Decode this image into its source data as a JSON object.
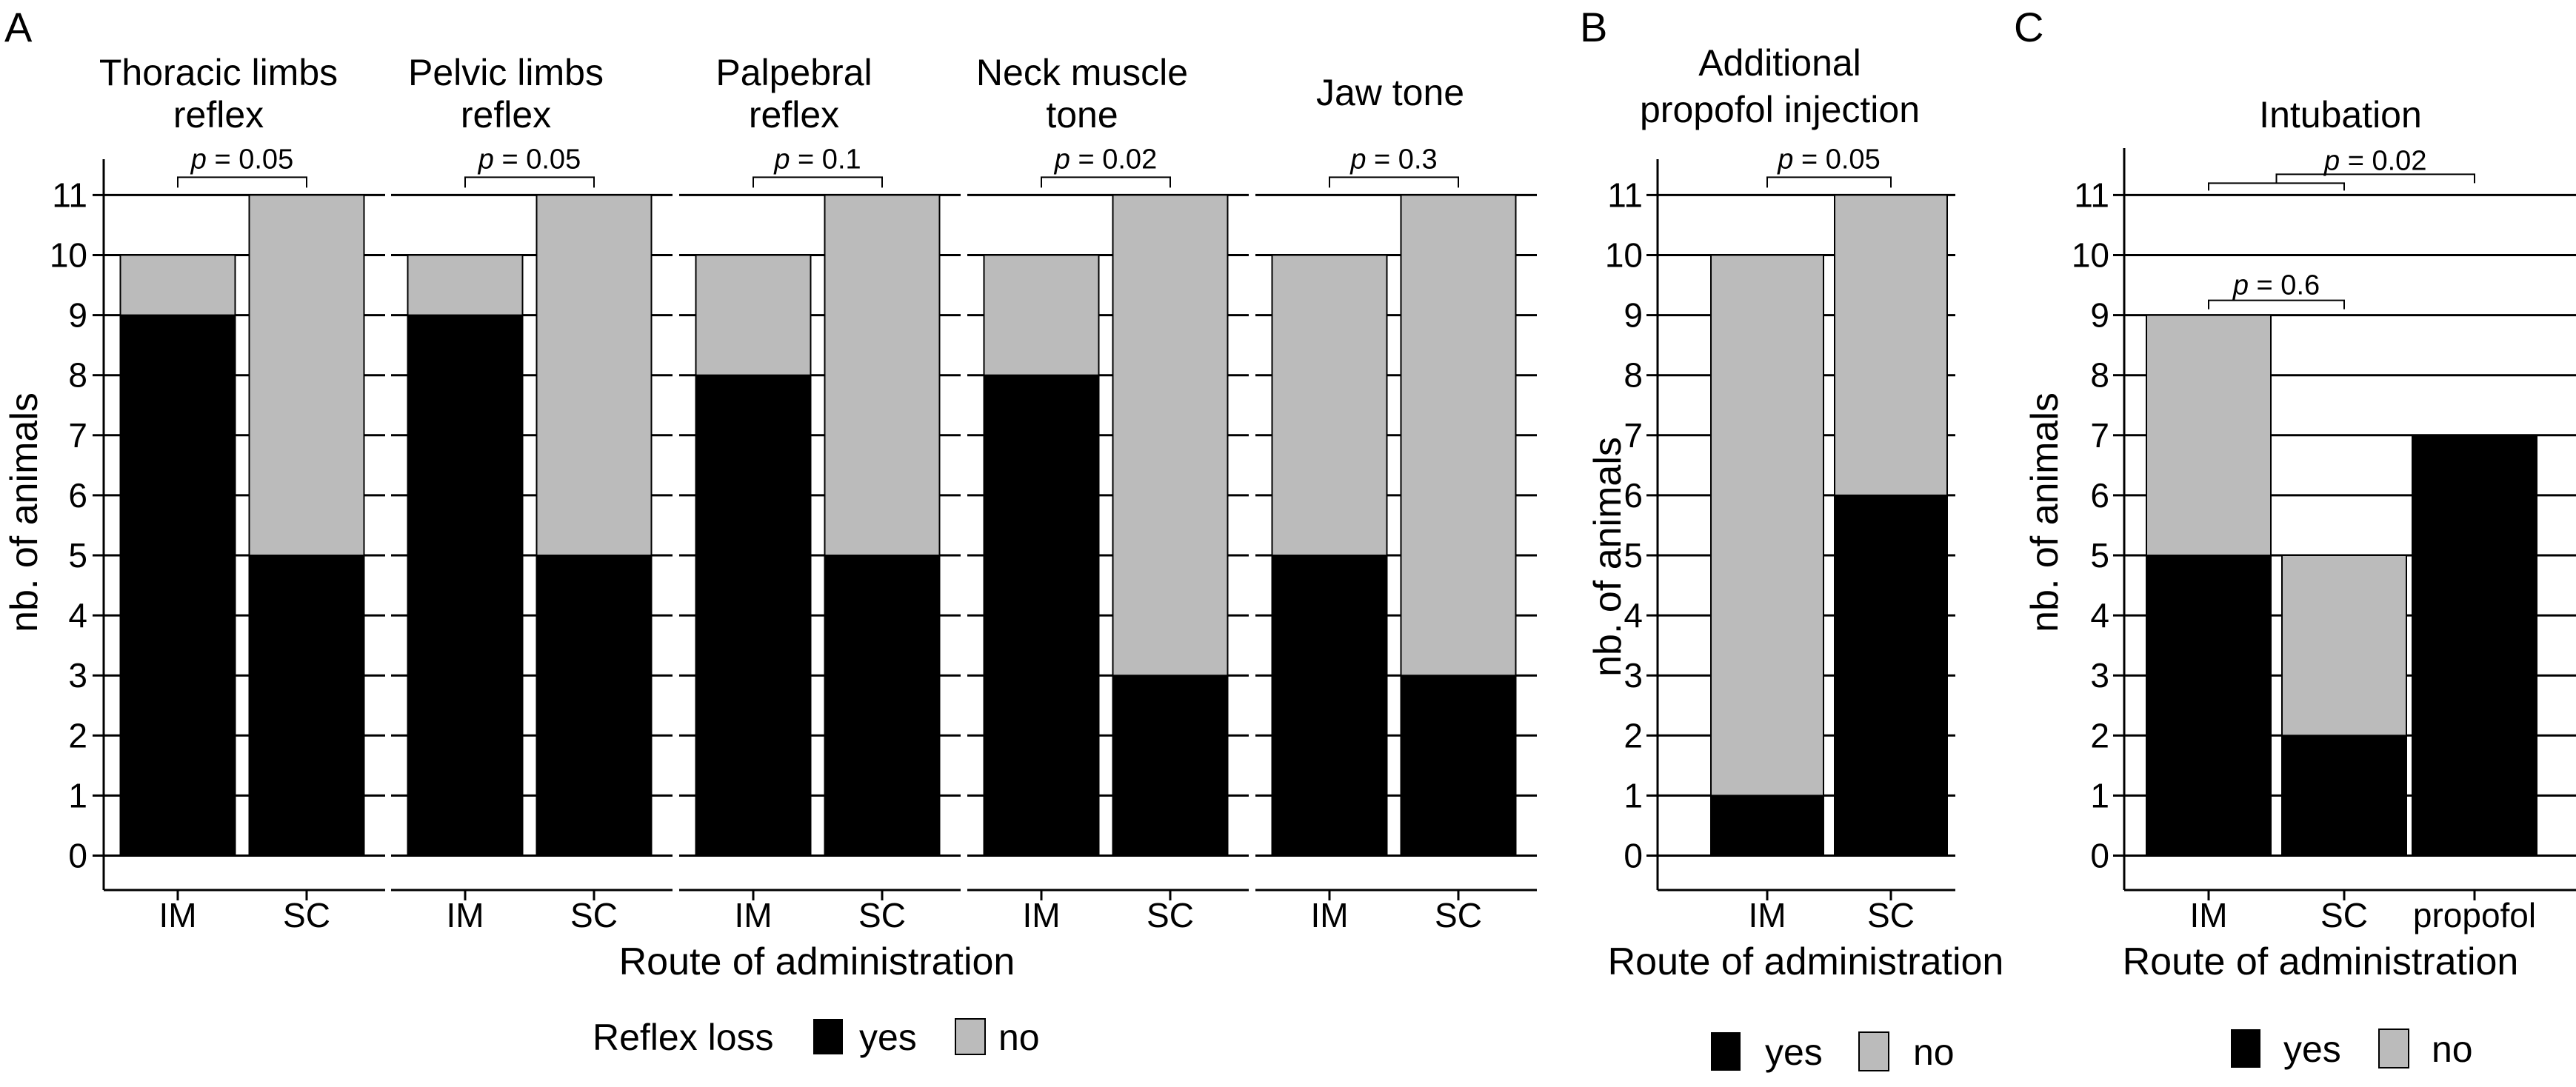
{
  "colors": {
    "yes": "#000000",
    "no": "#bbbbbb",
    "line": "#000000",
    "background": "#ffffff"
  },
  "chart_data": [
    {
      "panel": "A",
      "type": "bar",
      "stacked": true,
      "ylabel": "nb. of animals",
      "xlabel": "Route of administration",
      "ylim": [
        0,
        11
      ],
      "yticks": [
        0,
        1,
        2,
        3,
        4,
        5,
        6,
        7,
        8,
        9,
        10,
        11
      ],
      "legend": {
        "title": "Reflex loss",
        "items": [
          "yes",
          "no"
        ],
        "position": "bottom"
      },
      "facets": [
        {
          "title": [
            "Thoracic limbs",
            "reflex"
          ],
          "categories": [
            "IM",
            "SC"
          ],
          "yes": [
            9,
            5
          ],
          "no": [
            1,
            6
          ],
          "p_value": "= 0.05"
        },
        {
          "title": [
            "Pelvic limbs",
            "reflex"
          ],
          "categories": [
            "IM",
            "SC"
          ],
          "yes": [
            9,
            5
          ],
          "no": [
            1,
            6
          ],
          "p_value": "= 0.05"
        },
        {
          "title": [
            "Palpebral",
            "reflex"
          ],
          "categories": [
            "IM",
            "SC"
          ],
          "yes": [
            8,
            5
          ],
          "no": [
            2,
            6
          ],
          "p_value": "= 0.1"
        },
        {
          "title": [
            "Neck muscle",
            "tone"
          ],
          "categories": [
            "IM",
            "SC"
          ],
          "yes": [
            8,
            3
          ],
          "no": [
            2,
            8
          ],
          "p_value": "= 0.02"
        },
        {
          "title": [
            "Jaw tone"
          ],
          "categories": [
            "IM",
            "SC"
          ],
          "yes": [
            5,
            3
          ],
          "no": [
            5,
            8
          ],
          "p_value": "= 0.3"
        }
      ]
    },
    {
      "panel": "B",
      "type": "bar",
      "stacked": true,
      "title": [
        "Additional",
        "propofol injection"
      ],
      "ylabel": "nb. of animals",
      "xlabel": "Route of administration",
      "ylim": [
        0,
        11
      ],
      "yticks": [
        0,
        1,
        2,
        3,
        4,
        5,
        6,
        7,
        8,
        9,
        10,
        11
      ],
      "categories": [
        "IM",
        "SC"
      ],
      "series": [
        {
          "name": "yes",
          "values": [
            1,
            6
          ]
        },
        {
          "name": "no",
          "values": [
            9,
            5
          ]
        }
      ],
      "p_values": [
        "= 0.05"
      ],
      "legend": {
        "items": [
          "yes",
          "no"
        ],
        "position": "bottom"
      }
    },
    {
      "panel": "C",
      "type": "bar",
      "stacked": true,
      "title": [
        "Intubation"
      ],
      "ylabel": "nb. of animals",
      "xlabel": "Route of administration",
      "ylim": [
        0,
        11
      ],
      "yticks": [
        0,
        1,
        2,
        3,
        4,
        5,
        6,
        7,
        8,
        9,
        10,
        11
      ],
      "categories": [
        "IM",
        "SC",
        "propofol"
      ],
      "series": [
        {
          "name": "yes",
          "values": [
            5,
            2,
            7
          ]
        },
        {
          "name": "no",
          "values": [
            4,
            3,
            0
          ]
        }
      ],
      "p_values": [
        "= 0.6",
        "= 0.02"
      ],
      "legend": {
        "items": [
          "yes",
          "no"
        ],
        "position": "bottom"
      }
    }
  ]
}
